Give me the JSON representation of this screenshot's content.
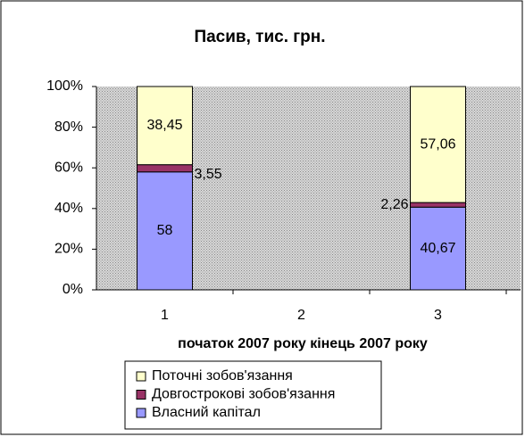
{
  "chart_data": {
    "type": "stacked-bar-percent",
    "title": "Пасив, тис. грн.",
    "x_label": "початок 2007 року кінець 2007 року",
    "categories": [
      "1",
      "2",
      "3"
    ],
    "series": [
      {
        "name": "Власний капітал",
        "color": "#9999ff",
        "values": [
          58,
          null,
          40.67
        ],
        "value_labels": [
          "58",
          null,
          "40,67"
        ]
      },
      {
        "name": "Довгострокові зобов'язання",
        "color": "#993366",
        "values": [
          3.55,
          null,
          2.26
        ],
        "value_labels": [
          "3,55",
          null,
          "2,26"
        ]
      },
      {
        "name": "Поточні зобов'язання",
        "color": "#ffffcc",
        "values": [
          38.45,
          null,
          57.06
        ],
        "value_labels": [
          "38,45",
          null,
          "57,06"
        ]
      }
    ],
    "ylim": [
      0,
      100
    ],
    "yticks": [
      {
        "value": 0,
        "label": "0%"
      },
      {
        "value": 20,
        "label": "20%"
      },
      {
        "value": 40,
        "label": "40%"
      },
      {
        "value": 60,
        "label": "60%"
      },
      {
        "value": 80,
        "label": "80%"
      },
      {
        "value": 100,
        "label": "100%"
      }
    ],
    "grid": false,
    "legend": "bottom"
  }
}
